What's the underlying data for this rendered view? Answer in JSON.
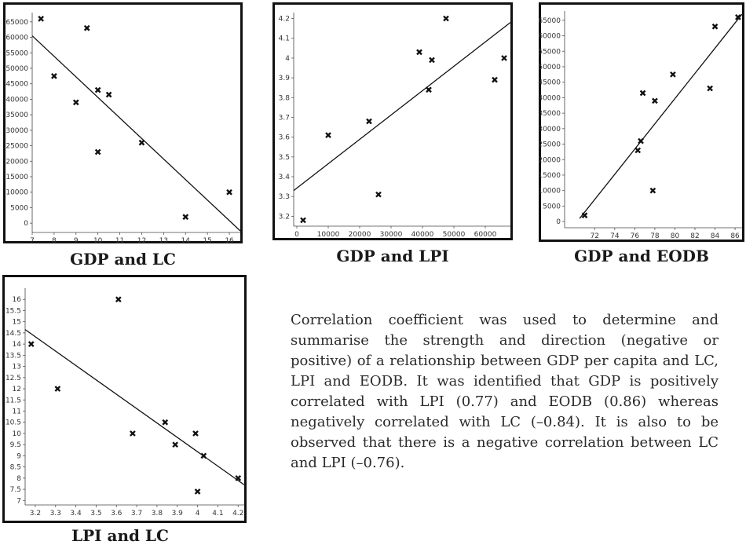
{
  "chart_data": [
    {
      "type": "scatter",
      "caption": "GDP and LC",
      "xlim": [
        7,
        16.5
      ],
      "ylim": [
        -3000,
        68000
      ],
      "xticks": [
        7,
        8,
        9,
        10,
        11,
        12,
        13,
        14,
        15,
        16
      ],
      "yticks": [
        0,
        5000,
        10000,
        15000,
        20000,
        25000,
        30000,
        35000,
        40000,
        45000,
        50000,
        55000,
        60000,
        65000
      ],
      "points": [
        [
          7.4,
          66000
        ],
        [
          8,
          47500
        ],
        [
          9,
          39000
        ],
        [
          9.5,
          63000
        ],
        [
          10,
          43000
        ],
        [
          10,
          23000
        ],
        [
          10.5,
          41500
        ],
        [
          12,
          26000
        ],
        [
          14,
          2000
        ],
        [
          16,
          10000
        ]
      ],
      "trendline": [
        [
          7,
          60500
        ],
        [
          16.5,
          -2500
        ]
      ]
    },
    {
      "type": "scatter",
      "caption": "GDP and LPI",
      "xlim": [
        -1000,
        68000
      ],
      "ylim": [
        3.15,
        4.23
      ],
      "xticks": [
        0,
        10000,
        20000,
        30000,
        40000,
        50000,
        60000
      ],
      "yticks": [
        3.2,
        3.3,
        3.4,
        3.5,
        3.6,
        3.7,
        3.8,
        3.9,
        4,
        4.1,
        4.2
      ],
      "points": [
        [
          2000,
          3.18
        ],
        [
          10000,
          3.61
        ],
        [
          23000,
          3.68
        ],
        [
          26000,
          3.31
        ],
        [
          39000,
          4.03
        ],
        [
          42000,
          3.84
        ],
        [
          43000,
          3.99
        ],
        [
          47500,
          4.2
        ],
        [
          63000,
          3.89
        ],
        [
          66000,
          4.0
        ]
      ],
      "trendline": [
        [
          -1000,
          3.33
        ],
        [
          68000,
          4.18
        ]
      ]
    },
    {
      "type": "scatter",
      "caption": "GDP and EODB",
      "xlim": [
        69,
        86.7
      ],
      "ylim": [
        -2000,
        68000
      ],
      "xticks": [
        72,
        74,
        76,
        78,
        80,
        82,
        84,
        86
      ],
      "yticks": [
        0,
        5000,
        10000,
        15000,
        20000,
        25000,
        30000,
        35000,
        40000,
        45000,
        50000,
        55000,
        60000,
        65000
      ],
      "points": [
        [
          71,
          2000
        ],
        [
          76.3,
          23000
        ],
        [
          76.6,
          26000
        ],
        [
          76.8,
          41500
        ],
        [
          77.8,
          10000
        ],
        [
          78,
          39000
        ],
        [
          79.8,
          47500
        ],
        [
          83.5,
          43000
        ],
        [
          84,
          63000
        ],
        [
          86.3,
          66000
        ]
      ],
      "trendline": [
        [
          70.5,
          1000
        ],
        [
          86.7,
          67000
        ]
      ]
    },
    {
      "type": "scatter",
      "caption": "LPI and LC",
      "xlim": [
        3.15,
        4.23
      ],
      "ylim": [
        6.8,
        16.5
      ],
      "xticks": [
        3.2,
        3.3,
        3.4,
        3.5,
        3.6,
        3.7,
        3.8,
        3.9,
        4,
        4.1,
        4.2
      ],
      "yticks": [
        7,
        7.5,
        8,
        8.5,
        9,
        9.5,
        10,
        10.5,
        11,
        11.5,
        12,
        12.5,
        13,
        13.5,
        14,
        14.5,
        15,
        15.5,
        16
      ],
      "points": [
        [
          3.18,
          14
        ],
        [
          3.31,
          12
        ],
        [
          3.61,
          16
        ],
        [
          3.68,
          10
        ],
        [
          3.84,
          10.5
        ],
        [
          3.89,
          9.5
        ],
        [
          3.99,
          10
        ],
        [
          4.0,
          7.4
        ],
        [
          4.03,
          9
        ],
        [
          4.2,
          8
        ]
      ],
      "trendline": [
        [
          3.15,
          14.65
        ],
        [
          4.23,
          7.7
        ]
      ]
    }
  ],
  "paragraph": "Correlation coefficient was used to determine and summarise the strength and direction (negative or positive) of a relationship between GDP per capita and LC, LPI and EODB. It was identified that GDP is positively correlated with LPI (0.77) and EODB (0.86) whereas negatively correlated with LC (–0.84). It is also to be observed that there is a negative correlation between LC and LPI (–0.76).",
  "colors": {
    "marker": "#111111",
    "line": "#111111",
    "frame": "#111111"
  }
}
